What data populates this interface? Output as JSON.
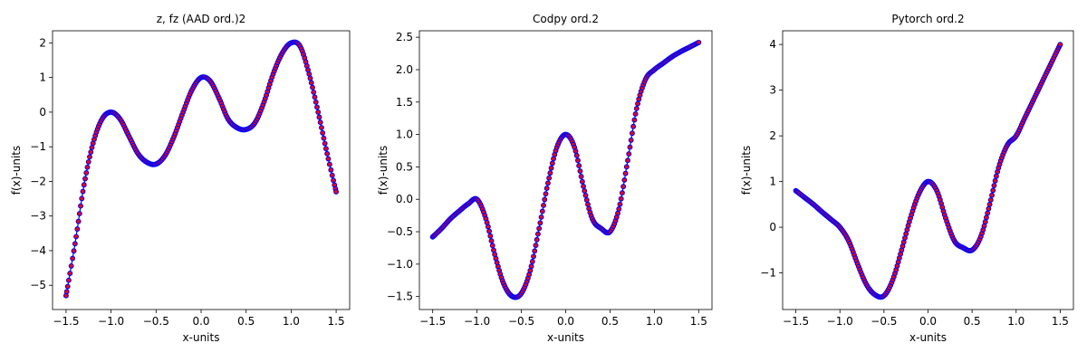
{
  "chart_data": [
    {
      "type": "scatter",
      "title": "z, fz (AAD ord.)2",
      "xlabel": "x-units",
      "ylabel": "f(x)-units",
      "xlim": [
        -1.65,
        1.65
      ],
      "ylim": [
        -5.7,
        2.35
      ],
      "xticks": [
        -1.5,
        -1.0,
        -0.5,
        0.0,
        0.5,
        1.0,
        1.5
      ],
      "xtick_labels": [
        "−1.5",
        "−1.0",
        "−0.5",
        "0.0",
        "0.5",
        "1.0",
        "1.5"
      ],
      "yticks": [
        -5,
        -4,
        -3,
        -2,
        -1,
        0,
        1,
        2
      ],
      "ytick_labels": [
        "−5",
        "−4",
        "−3",
        "−2",
        "−1",
        "0",
        "1",
        "2"
      ],
      "grid": false,
      "line_color": "#0000ff",
      "marker_fill": "#ff0000",
      "marker_edge": "#0000ff",
      "series": [
        {
          "x": [
            -1.5,
            -1.4,
            -1.3,
            -1.2,
            -1.1,
            -1.0,
            -0.9,
            -0.8,
            -0.7,
            -0.6,
            -0.5,
            -0.4,
            -0.3,
            -0.2,
            -0.1,
            0.0,
            0.1,
            0.2,
            0.3,
            0.4,
            0.5,
            0.6,
            0.7,
            0.8,
            0.9,
            1.0,
            1.1,
            1.2,
            1.3,
            1.4,
            1.5
          ],
          "y": [
            -5.3,
            -3.8,
            -2.1,
            -0.9,
            -0.2,
            0.0,
            -0.2,
            -0.7,
            -1.2,
            -1.45,
            -1.5,
            -1.25,
            -0.7,
            0.0,
            0.65,
            1.0,
            0.9,
            0.4,
            -0.2,
            -0.45,
            -0.5,
            -0.3,
            0.3,
            1.1,
            1.7,
            2.0,
            1.9,
            1.1,
            0.0,
            -1.2,
            -2.3
          ]
        }
      ]
    },
    {
      "type": "scatter",
      "title": "Codpy ord.2",
      "xlabel": "x-units",
      "ylabel": "f(x)-units",
      "xlim": [
        -1.65,
        1.65
      ],
      "ylim": [
        -1.7,
        2.6
      ],
      "xticks": [
        -1.5,
        -1.0,
        -0.5,
        0.0,
        0.5,
        1.0,
        1.5
      ],
      "xtick_labels": [
        "−1.5",
        "−1.0",
        "−0.5",
        "0.0",
        "0.5",
        "1.0",
        "1.5"
      ],
      "yticks": [
        -1.5,
        -1.0,
        -0.5,
        0.0,
        0.5,
        1.0,
        1.5,
        2.0,
        2.5
      ],
      "ytick_labels": [
        "−1.5",
        "−1.0",
        "−0.5",
        "0.0",
        "0.5",
        "1.0",
        "1.5",
        "2.0",
        "2.5"
      ],
      "grid": false,
      "line_color": "#0000ff",
      "marker_fill": "#ff0000",
      "marker_edge": "#0000ff",
      "series": [
        {
          "x": [
            -1.5,
            -1.4,
            -1.3,
            -1.2,
            -1.1,
            -1.0,
            -0.9,
            -0.8,
            -0.7,
            -0.6,
            -0.5,
            -0.4,
            -0.3,
            -0.2,
            -0.1,
            0.0,
            0.1,
            0.2,
            0.3,
            0.4,
            0.5,
            0.6,
            0.7,
            0.8,
            0.9,
            1.0,
            1.1,
            1.2,
            1.3,
            1.4,
            1.5
          ],
          "y": [
            -0.58,
            -0.45,
            -0.3,
            -0.18,
            -0.07,
            0.0,
            -0.3,
            -0.85,
            -1.3,
            -1.5,
            -1.45,
            -1.1,
            -0.45,
            0.25,
            0.8,
            1.0,
            0.8,
            0.2,
            -0.3,
            -0.45,
            -0.5,
            -0.15,
            0.6,
            1.4,
            1.85,
            2.0,
            2.1,
            2.2,
            2.28,
            2.35,
            2.42
          ]
        }
      ]
    },
    {
      "type": "scatter",
      "title": "Pytorch ord.2",
      "xlabel": "x-units",
      "ylabel": "f(x)-units",
      "xlim": [
        -1.65,
        1.65
      ],
      "ylim": [
        -1.8,
        4.3
      ],
      "xticks": [
        -1.5,
        -1.0,
        -0.5,
        0.0,
        0.5,
        1.0,
        1.5
      ],
      "xtick_labels": [
        "−1.5",
        "−1.0",
        "−0.5",
        "0.0",
        "0.5",
        "1.0",
        "1.5"
      ],
      "yticks": [
        -1,
        0,
        1,
        2,
        3,
        4
      ],
      "ytick_labels": [
        "−1",
        "0",
        "1",
        "2",
        "3",
        "4"
      ],
      "grid": false,
      "line_color": "#0000ff",
      "marker_fill": "#ff0000",
      "marker_edge": "#0000ff",
      "series": [
        {
          "x": [
            -1.5,
            -1.4,
            -1.3,
            -1.2,
            -1.1,
            -1.0,
            -0.9,
            -0.8,
            -0.7,
            -0.6,
            -0.5,
            -0.4,
            -0.3,
            -0.2,
            -0.1,
            0.0,
            0.1,
            0.2,
            0.3,
            0.4,
            0.5,
            0.6,
            0.7,
            0.8,
            0.9,
            1.0,
            1.1,
            1.2,
            1.3,
            1.4,
            1.5
          ],
          "y": [
            0.8,
            0.65,
            0.5,
            0.33,
            0.17,
            0.0,
            -0.3,
            -0.8,
            -1.25,
            -1.48,
            -1.5,
            -1.15,
            -0.5,
            0.2,
            0.75,
            1.0,
            0.8,
            0.2,
            -0.3,
            -0.45,
            -0.5,
            -0.2,
            0.5,
            1.3,
            1.8,
            2.0,
            2.4,
            2.8,
            3.2,
            3.6,
            4.0
          ]
        }
      ]
    }
  ]
}
